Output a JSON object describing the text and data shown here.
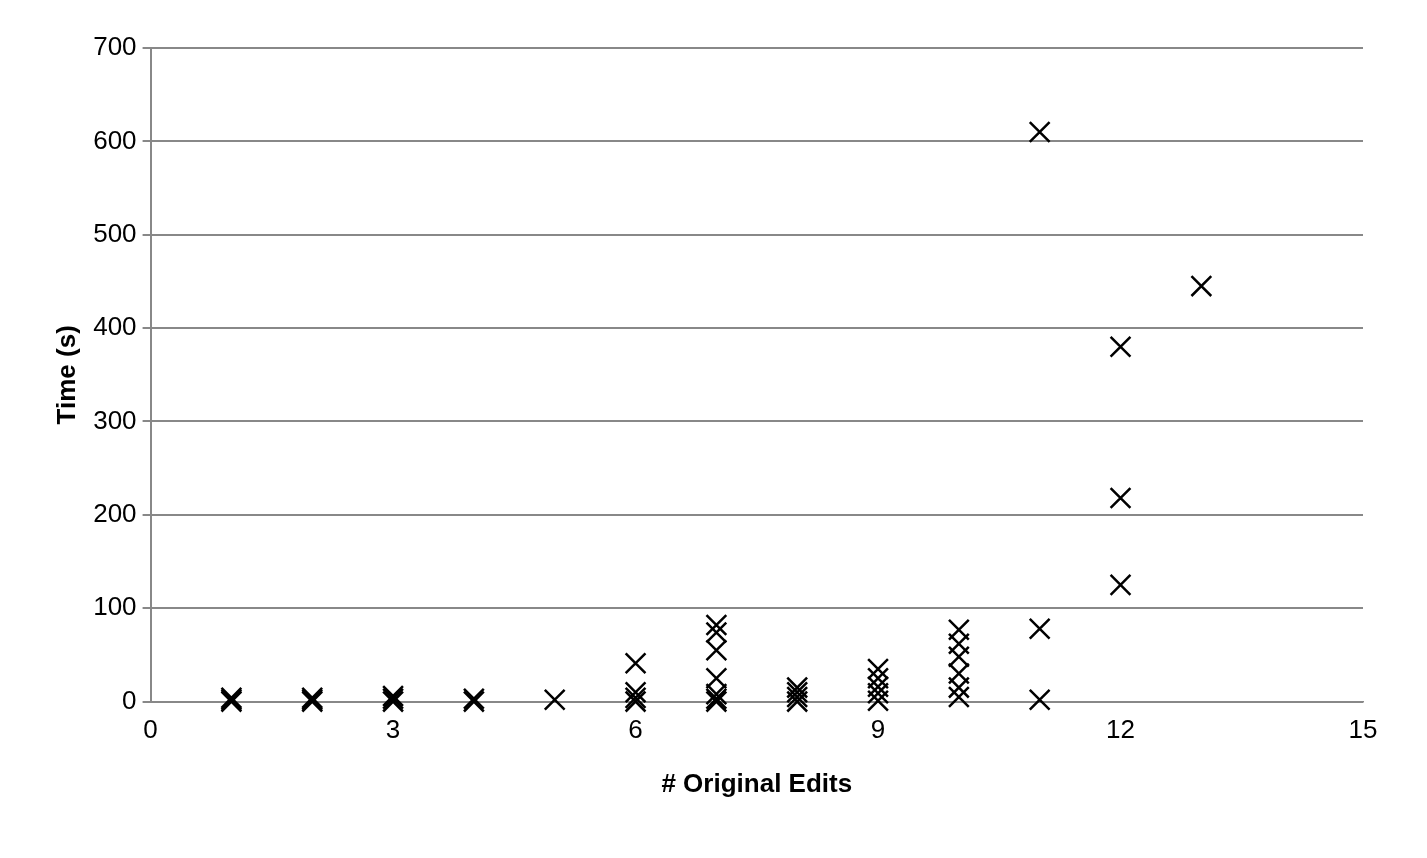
{
  "chart_data": {
    "type": "scatter",
    "xlabel": "# Original Edits",
    "ylabel": "Time (s)",
    "x": [
      1,
      1,
      1,
      2,
      2,
      2,
      3,
      3,
      3,
      4,
      4,
      5,
      6,
      6,
      6,
      6,
      7,
      7,
      7,
      7,
      7,
      7,
      7,
      8,
      8,
      8,
      8,
      9,
      9,
      9,
      9,
      9,
      10,
      10,
      10,
      10,
      10,
      10,
      11,
      11,
      11,
      12,
      12,
      12,
      13
    ],
    "series": [
      {
        "color": "#000000",
        "values": [
          0,
          2,
          4,
          0,
          2,
          4,
          0,
          3,
          6,
          0,
          3,
          2,
          41,
          10,
          4,
          0,
          82,
          74,
          55,
          25,
          8,
          3,
          0,
          15,
          10,
          5,
          0,
          35,
          25,
          16,
          9,
          1,
          77,
          62,
          48,
          30,
          15,
          5,
          610,
          78,
          2,
          380,
          218,
          125,
          445
        ]
      }
    ],
    "xlim": [
      0,
      15
    ],
    "xticks": [
      0,
      3,
      6,
      9,
      12,
      15
    ],
    "ylim": [
      0,
      700
    ],
    "yticks": [
      0,
      100,
      200,
      300,
      400,
      500,
      600,
      700
    ],
    "grid": "y",
    "legend": false,
    "marker": "cross"
  }
}
